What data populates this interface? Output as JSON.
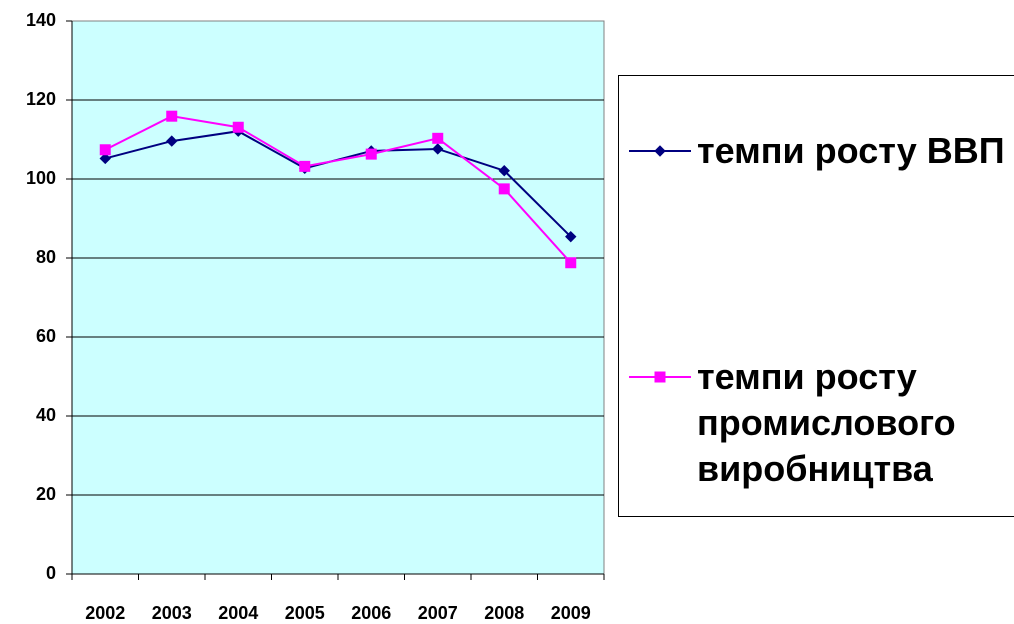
{
  "chart_data": {
    "type": "line",
    "categories": [
      "2002",
      "2003",
      "2004",
      "2005",
      "2006",
      "2007",
      "2008",
      "2009"
    ],
    "series": [
      {
        "name": "темпи росту ВВП",
        "color": "#000080",
        "marker": "diamond",
        "values": [
          105.2,
          109.6,
          112.1,
          102.7,
          107.1,
          107.6,
          102.1,
          85.4
        ]
      },
      {
        "name": "темпи росту промислового виробництва",
        "color": "#ff00ff",
        "marker": "square",
        "values": [
          107.4,
          115.9,
          113.1,
          103.2,
          106.3,
          110.3,
          97.5,
          78.8
        ]
      }
    ],
    "ylim": [
      0,
      140
    ],
    "yticks": [
      0,
      20,
      40,
      60,
      80,
      100,
      120,
      140
    ],
    "grid": true,
    "legend": "right"
  }
}
